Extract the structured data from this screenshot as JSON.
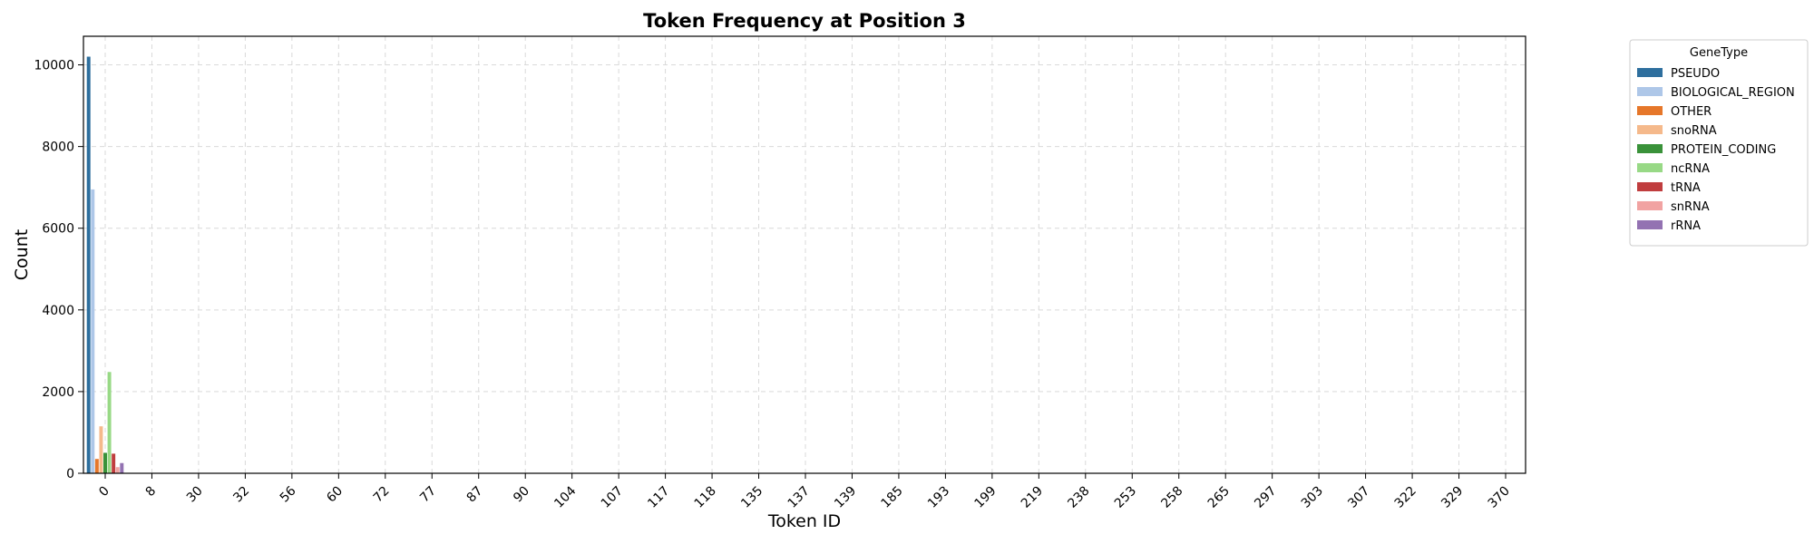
{
  "chart_data": {
    "type": "bar",
    "title": "Token Frequency at Position 3",
    "xlabel": "Token ID",
    "ylabel": "Count",
    "categories": [
      "0",
      "8",
      "30",
      "32",
      "56",
      "60",
      "72",
      "77",
      "87",
      "90",
      "104",
      "107",
      "117",
      "118",
      "135",
      "137",
      "139",
      "185",
      "193",
      "199",
      "219",
      "238",
      "253",
      "258",
      "265",
      "297",
      "303",
      "307",
      "322",
      "329",
      "370"
    ],
    "ylim": [
      0,
      10700
    ],
    "yticks": [
      0,
      2000,
      4000,
      6000,
      8000,
      10000
    ],
    "grid": true,
    "legend": {
      "title": "GeneType",
      "placement": "outside-right"
    },
    "series": [
      {
        "name": "PSEUDO",
        "color": "#2e6f9e",
        "values": [
          10200,
          0,
          0,
          0,
          0,
          0,
          0,
          0,
          0,
          0,
          0,
          0,
          0,
          0,
          0,
          0,
          0,
          0,
          0,
          0,
          0,
          0,
          0,
          0,
          0,
          0,
          0,
          0,
          0,
          0,
          0
        ]
      },
      {
        "name": "BIOLOGICAL_REGION",
        "color": "#aec7e8",
        "values": [
          6950,
          0,
          0,
          0,
          0,
          0,
          0,
          0,
          0,
          0,
          0,
          0,
          0,
          0,
          0,
          0,
          0,
          0,
          0,
          0,
          0,
          0,
          0,
          0,
          0,
          0,
          0,
          0,
          0,
          0,
          0
        ]
      },
      {
        "name": "OTHER",
        "color": "#e6772a",
        "values": [
          350,
          0,
          0,
          0,
          0,
          0,
          0,
          0,
          0,
          0,
          0,
          0,
          0,
          0,
          0,
          0,
          0,
          0,
          0,
          0,
          0,
          0,
          0,
          0,
          0,
          0,
          0,
          0,
          0,
          0,
          0
        ]
      },
      {
        "name": "snoRNA",
        "color": "#f5b98b",
        "values": [
          1150,
          0,
          0,
          0,
          0,
          0,
          0,
          0,
          0,
          0,
          0,
          0,
          0,
          0,
          0,
          0,
          0,
          0,
          0,
          0,
          0,
          0,
          0,
          0,
          0,
          0,
          0,
          0,
          0,
          0,
          0
        ]
      },
      {
        "name": "PROTEIN_CODING",
        "color": "#3a923a",
        "values": [
          500,
          0,
          0,
          0,
          0,
          0,
          0,
          0,
          0,
          0,
          0,
          0,
          0,
          0,
          0,
          0,
          0,
          0,
          0,
          0,
          0,
          0,
          0,
          0,
          0,
          0,
          0,
          0,
          0,
          0,
          0
        ]
      },
      {
        "name": "ncRNA",
        "color": "#98d986",
        "values": [
          2480,
          0,
          0,
          0,
          0,
          0,
          0,
          0,
          0,
          0,
          0,
          0,
          0,
          0,
          0,
          0,
          0,
          0,
          0,
          0,
          0,
          0,
          0,
          0,
          0,
          0,
          0,
          0,
          0,
          0,
          0
        ]
      },
      {
        "name": "tRNA",
        "color": "#c03d3e",
        "values": [
          480,
          0,
          0,
          0,
          0,
          0,
          0,
          0,
          0,
          0,
          0,
          0,
          0,
          0,
          0,
          0,
          0,
          0,
          0,
          0,
          0,
          0,
          0,
          0,
          0,
          0,
          0,
          0,
          0,
          0,
          0
        ]
      },
      {
        "name": "snRNA",
        "color": "#f1a3a2",
        "values": [
          150,
          0,
          0,
          0,
          0,
          0,
          0,
          0,
          0,
          0,
          0,
          0,
          0,
          0,
          0,
          0,
          0,
          0,
          0,
          0,
          0,
          0,
          0,
          0,
          0,
          0,
          0,
          0,
          0,
          0,
          0
        ]
      },
      {
        "name": "rRNA",
        "color": "#9372b2",
        "values": [
          250,
          0,
          0,
          0,
          0,
          0,
          0,
          0,
          0,
          0,
          0,
          0,
          0,
          0,
          0,
          0,
          0,
          0,
          0,
          0,
          0,
          0,
          0,
          0,
          0,
          0,
          0,
          0,
          0,
          0,
          0
        ]
      }
    ]
  }
}
